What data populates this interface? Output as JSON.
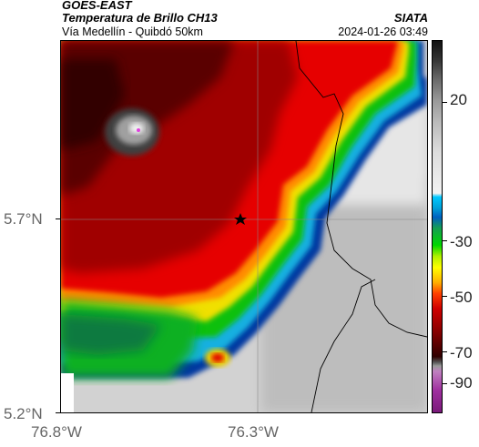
{
  "header": {
    "satellite": "GOES-EAST",
    "product": "Temperatura de Brillo CH13",
    "organization": "SIATA",
    "subtitle": "Vía Medellín - Quibdó 50km",
    "datetime": "2024-01-26 03:49"
  },
  "map": {
    "lat_labels": [
      "5.7°N",
      "5.2°N"
    ],
    "lon_labels": [
      "76.8°W",
      "76.3°W"
    ]
  },
  "colorbar": {
    "labels": [
      "20",
      "-30",
      "-50",
      "-70",
      "-90"
    ]
  },
  "colors": {
    "cold_core": "#8a0000",
    "red": "#e40000",
    "green": "#00d000",
    "coast_blue": "#0040a0",
    "warm_gray": "#c8c8c8",
    "marker": "#000000"
  }
}
